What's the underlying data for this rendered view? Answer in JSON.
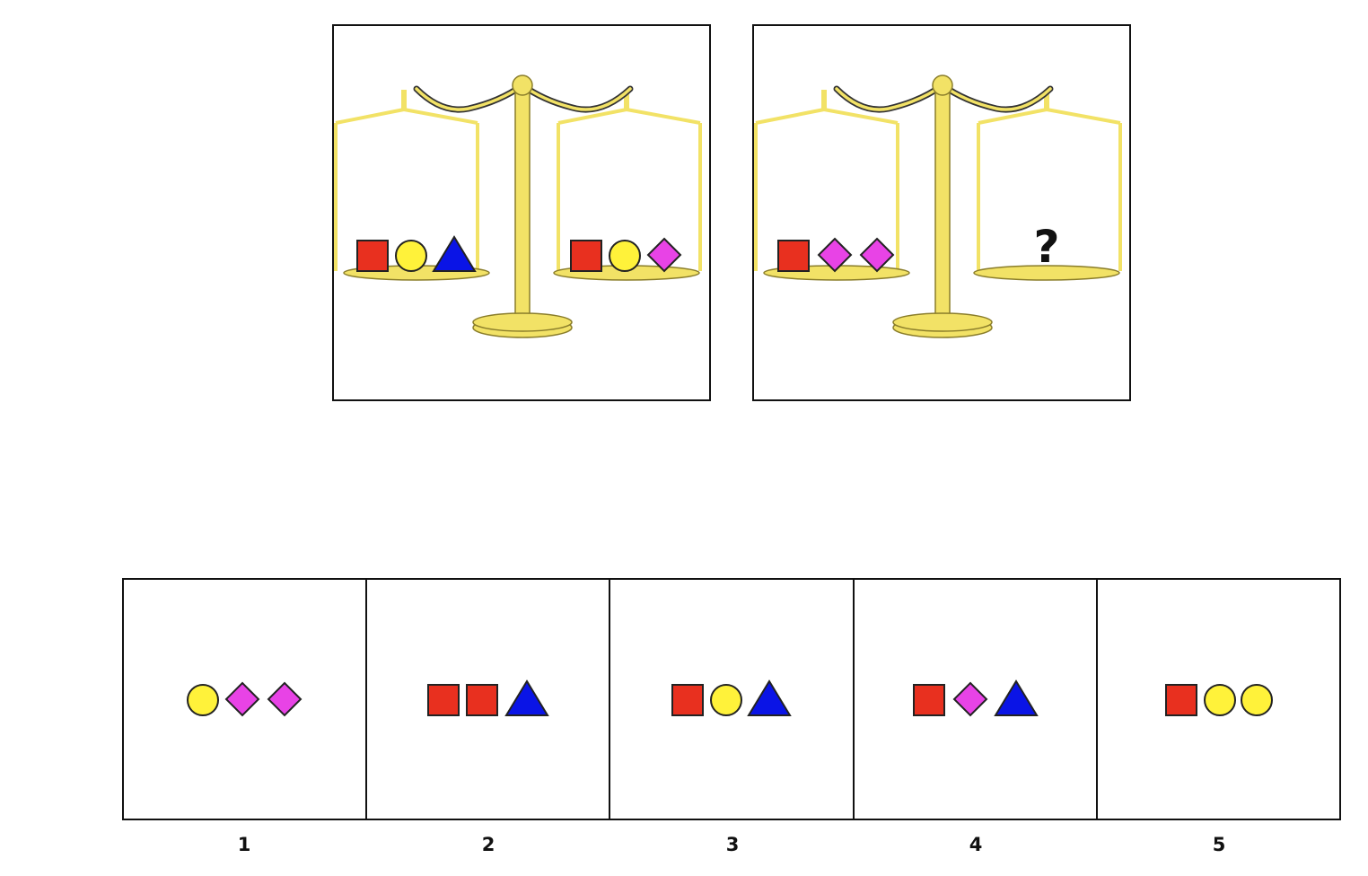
{
  "colors": {
    "square": "#e8301f",
    "circle": "#fff23a",
    "diamond": "#e843e6",
    "triangle": "#0a14e6",
    "scale_brass": "#f2e266",
    "scale_outline": "#8a7d2a"
  },
  "scales": [
    {
      "left_pan": [
        "square",
        "circle",
        "triangle"
      ],
      "right_pan": [
        "square",
        "circle",
        "diamond"
      ],
      "right_label": ""
    },
    {
      "left_pan": [
        "square",
        "diamond",
        "diamond"
      ],
      "right_pan": [],
      "right_label": "?"
    }
  ],
  "options": [
    {
      "label": "1",
      "shapes": [
        "circle",
        "diamond",
        "diamond"
      ]
    },
    {
      "label": "2",
      "shapes": [
        "square",
        "square",
        "triangle"
      ]
    },
    {
      "label": "3",
      "shapes": [
        "square",
        "circle",
        "triangle"
      ]
    },
    {
      "label": "4",
      "shapes": [
        "square",
        "diamond",
        "triangle"
      ]
    },
    {
      "label": "5",
      "shapes": [
        "square",
        "circle",
        "circle"
      ]
    }
  ]
}
